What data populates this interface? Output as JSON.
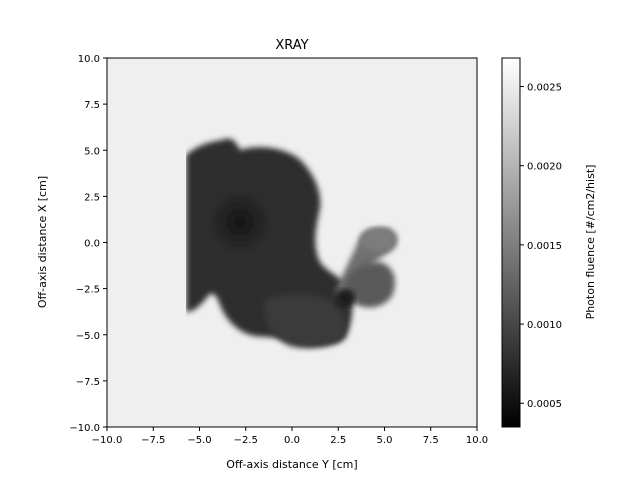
{
  "chart_data": {
    "type": "heatmap",
    "title": "XRAY",
    "xlabel": "Off-axis distance Y [cm]",
    "ylabel": "Off-axis distance X [cm]",
    "xlim": [
      -10.0,
      10.0
    ],
    "ylim": [
      -10.0,
      10.0
    ],
    "x_ticks": [
      "−10.0",
      "−7.5",
      "−5.0",
      "−2.5",
      "0.0",
      "2.5",
      "5.0",
      "7.5",
      "10.0"
    ],
    "y_ticks": [
      "10.0",
      "7.5",
      "5.0",
      "2.5",
      "0.0",
      "−2.5",
      "−5.0",
      "−7.5",
      "−10.0"
    ],
    "colormap": "gray",
    "grid": false,
    "colorbar": {
      "label": "Photon fluence [#/cm2/hist]",
      "range": [
        0.00035,
        0.00268
      ],
      "ticks": [
        "0.0025",
        "0.0020",
        "0.0015",
        "0.0010",
        "0.0005"
      ],
      "tick_values": [
        0.0025,
        0.002,
        0.0015,
        0.001,
        0.0005
      ]
    },
    "background_value": 0.00255,
    "regions": [
      {
        "name": "main-body",
        "value": 0.00045
      },
      {
        "name": "lower-lobe",
        "value": 0.0006
      },
      {
        "name": "dark-core",
        "value": 0.0004
      },
      {
        "name": "right-arm",
        "value": 0.0012
      },
      {
        "name": "arm-tip",
        "value": 0.0014
      },
      {
        "name": "lower-arm",
        "value": 0.00095
      },
      {
        "name": "arm-joint",
        "value": 0.0005
      }
    ]
  }
}
